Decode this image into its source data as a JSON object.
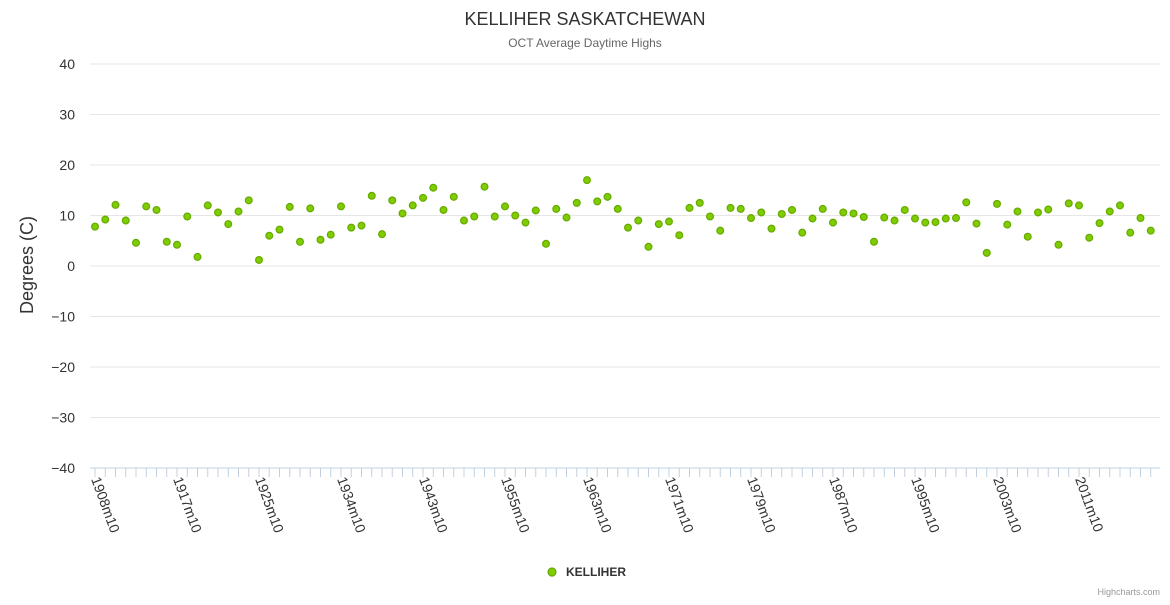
{
  "chart_data": {
    "type": "scatter",
    "title": "KELLIHER SASKATCHEWAN",
    "subtitle": "OCT Average Daytime Highs",
    "xlabel": "",
    "ylabel": "Degrees (C)",
    "ylim": [
      -40,
      40
    ],
    "yticks": [
      40,
      30,
      20,
      10,
      0,
      -10,
      -20,
      -30,
      -40
    ],
    "grid": true,
    "legend_position": "bottom-center",
    "credits": "Highcharts.com",
    "x_tick_labels": [
      "1908m10",
      "1917m10",
      "1925m10",
      "1934m10",
      "1943m10",
      "1955m10",
      "1963m10",
      "1971m10",
      "1979m10",
      "1987m10",
      "1995m10",
      "2003m10",
      "2011m10"
    ],
    "series": [
      {
        "name": "KELLIHER",
        "color": "#66aa00",
        "marker_fill": "#7fcc00",
        "values": [
          7.8,
          9.2,
          12.1,
          9.0,
          4.6,
          11.8,
          11.1,
          4.8,
          4.2,
          9.8,
          1.8,
          12.0,
          10.6,
          8.3,
          10.8,
          13.0,
          1.2,
          6.0,
          7.2,
          11.7,
          4.8,
          11.4,
          5.2,
          6.2,
          11.8,
          7.6,
          8.0,
          13.9,
          6.3,
          13.0,
          10.4,
          12.0,
          13.5,
          15.5,
          11.1,
          13.7,
          9.0,
          9.8,
          15.7,
          9.8,
          11.8,
          10.0,
          8.6,
          11.0,
          4.4,
          11.3,
          9.6,
          12.5,
          17.0,
          12.8,
          13.7,
          11.3,
          7.6,
          9.0,
          3.8,
          8.3,
          8.8,
          6.1,
          11.5,
          12.5,
          9.8,
          7.0,
          11.5,
          11.3,
          9.5,
          10.6,
          7.4,
          10.3,
          11.1,
          6.6,
          9.4,
          11.3,
          8.6,
          10.6,
          10.4,
          9.7,
          4.8,
          9.6,
          9.0,
          11.1,
          9.4,
          8.6,
          8.7,
          9.4,
          9.5,
          12.6,
          8.4,
          2.6,
          12.3,
          8.2,
          10.8,
          5.8,
          10.6,
          11.2,
          4.2,
          12.4,
          12.0,
          5.6,
          8.5,
          10.8,
          12.0,
          6.6,
          9.5,
          7.0
        ]
      }
    ]
  }
}
